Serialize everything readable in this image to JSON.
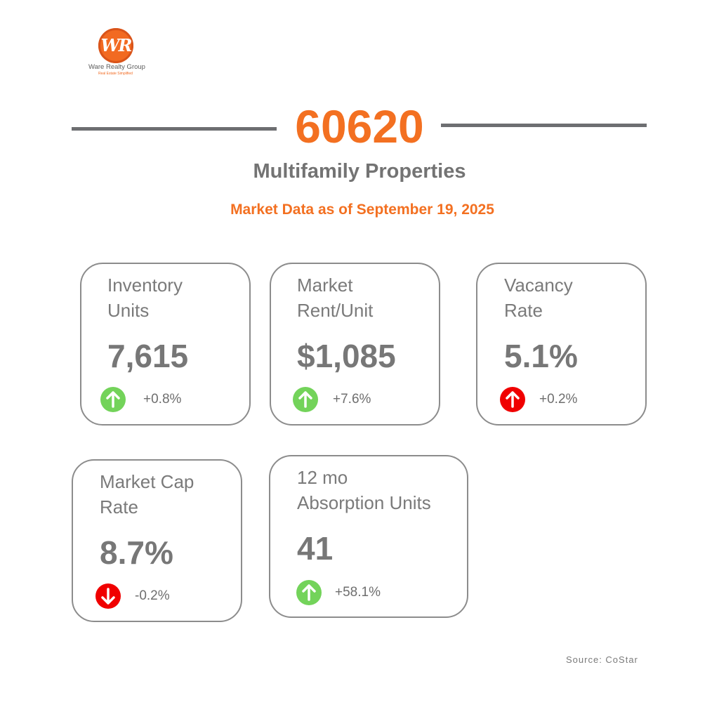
{
  "brand": {
    "logo_mark": "WR",
    "name": "Ware Realty Group",
    "tagline": "Real Estate Simplified"
  },
  "header": {
    "zip": "60620",
    "subtitle": "Multifamily Properties",
    "date_line": "Market Data as of September 19, 2025"
  },
  "colors": {
    "accent": "#f37021",
    "text_gray": "#777777",
    "positive": "#73d35a",
    "negative": "#f00000"
  },
  "cards": [
    {
      "label": "Inventory\nUnits",
      "value": "7,615",
      "change": "+0.8%",
      "direction": "up",
      "status_color": "#73d35a",
      "icon": "arrow-up-icon"
    },
    {
      "label": "Market\nRent/Unit",
      "value": "$1,085",
      "change": "+7.6%",
      "direction": "up",
      "status_color": "#73d35a",
      "icon": "arrow-up-icon"
    },
    {
      "label": "Vacancy\nRate",
      "value": "5.1%",
      "change": "+0.2%",
      "direction": "up",
      "status_color": "#f00000",
      "icon": "arrow-up-icon"
    },
    {
      "label": "Market Cap\nRate",
      "value": "8.7%",
      "change": "-0.2%",
      "direction": "down",
      "status_color": "#f00000",
      "icon": "arrow-down-icon"
    },
    {
      "label": "12 mo\nAbsorption Units",
      "value": "41",
      "change": "+58.1%",
      "direction": "up",
      "status_color": "#73d35a",
      "icon": "arrow-up-icon"
    }
  ],
  "footer": {
    "source": "Source: CoStar"
  }
}
